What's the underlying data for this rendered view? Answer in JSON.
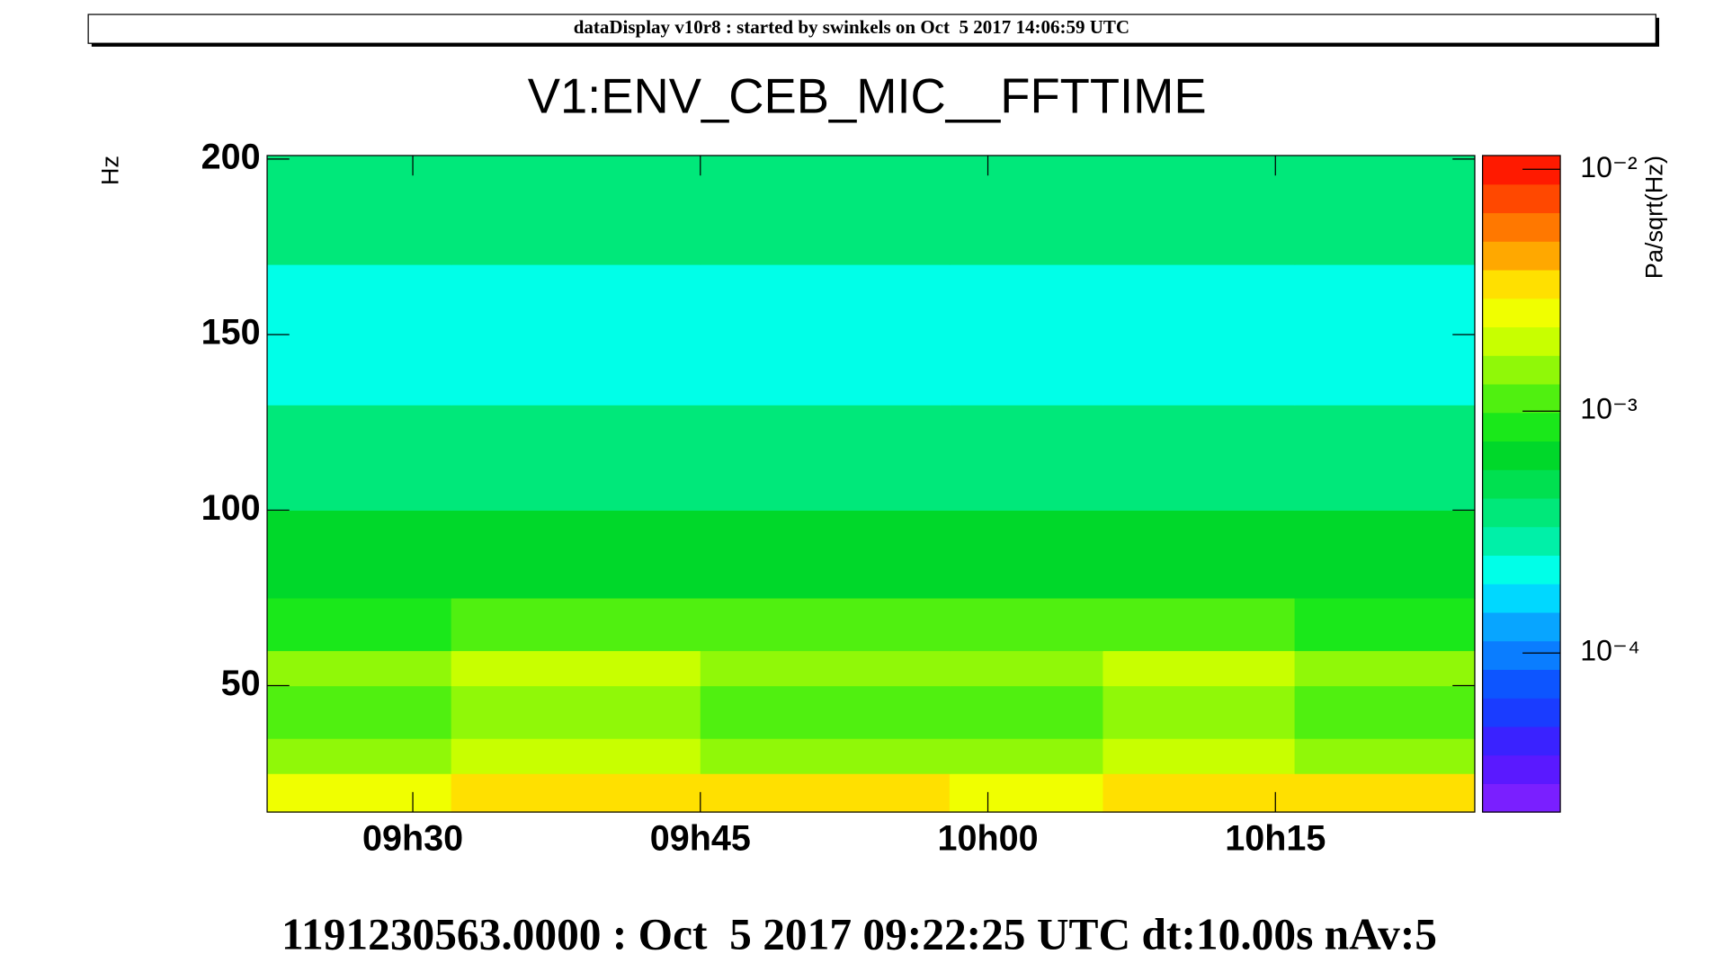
{
  "header": "dataDisplay v10r8 : started by swinkels on Oct  5 2017 14:06:59 UTC",
  "chart_data": {
    "type": "heatmap",
    "title": "V1:ENV_CEB_MIC__FFTTIME",
    "y_label": "Hz",
    "z_label": "Pa/sqrt(Hz)",
    "footer": "1191230563.0000 : Oct  5 2017 09:22:25 UTC dt:10.00s nAv:5",
    "xlim": [
      562.4,
      625.4
    ],
    "xticks": [
      {
        "value": 570,
        "label": "09h30"
      },
      {
        "value": 585,
        "label": "09h45"
      },
      {
        "value": 600,
        "label": "10h00"
      },
      {
        "value": 615,
        "label": "10h15"
      }
    ],
    "ylim": [
      14,
      201
    ],
    "yticks": [
      50,
      100,
      150,
      200
    ],
    "zlim": [
      2.2e-05,
      0.0114
    ],
    "zscale": "log",
    "zticks": [
      {
        "value": 0.01,
        "label": "10⁻²"
      },
      {
        "value": 0.001,
        "label": "10⁻³"
      },
      {
        "value": 0.0001,
        "label": "10⁻⁴"
      }
    ],
    "colorscale": [
      "#7a1fff",
      "#5a19ff",
      "#3a22ff",
      "#1a3cff",
      "#0d55ff",
      "#0a7dff",
      "#08a5ff",
      "#00d8ff",
      "#00ffe8",
      "#00f0a8",
      "#00e87a",
      "#00e050",
      "#00d82a",
      "#1ae81a",
      "#50f010",
      "#90f808",
      "#c8ff00",
      "#f0ff00",
      "#ffe000",
      "#ffa800",
      "#ff7800",
      "#ff4800",
      "#ff1a00"
    ],
    "x_edges": [
      562.4,
      572,
      585,
      598,
      606,
      616,
      625.4
    ],
    "y_edges": [
      14,
      25,
      35,
      50,
      60,
      75,
      100,
      130,
      170,
      201
    ],
    "z": [
      [
        0.0028,
        0.0034,
        0.003,
        0.0029,
        0.0035,
        0.003
      ],
      [
        0.0016,
        0.0019,
        0.0017,
        0.0016,
        0.002,
        0.0016
      ],
      [
        0.0011,
        0.0014,
        0.0012,
        0.0012,
        0.0014,
        0.0011
      ],
      [
        0.0015,
        0.0018,
        0.0016,
        0.0016,
        0.0019,
        0.0015
      ],
      [
        0.0009,
        0.0012,
        0.001,
        0.001,
        0.0012,
        0.0009
      ],
      [
        0.0006,
        0.0007,
        0.0006,
        0.0006,
        0.0007,
        0.0006
      ],
      [
        0.00035,
        0.0004,
        0.00036,
        0.00036,
        0.0004,
        0.00035
      ],
      [
        0.00022,
        0.00024,
        0.00022,
        0.00022,
        0.00025,
        0.00022
      ],
      [
        0.0004,
        0.00042,
        0.0004,
        0.0004,
        0.00043,
        0.0004
      ]
    ]
  }
}
